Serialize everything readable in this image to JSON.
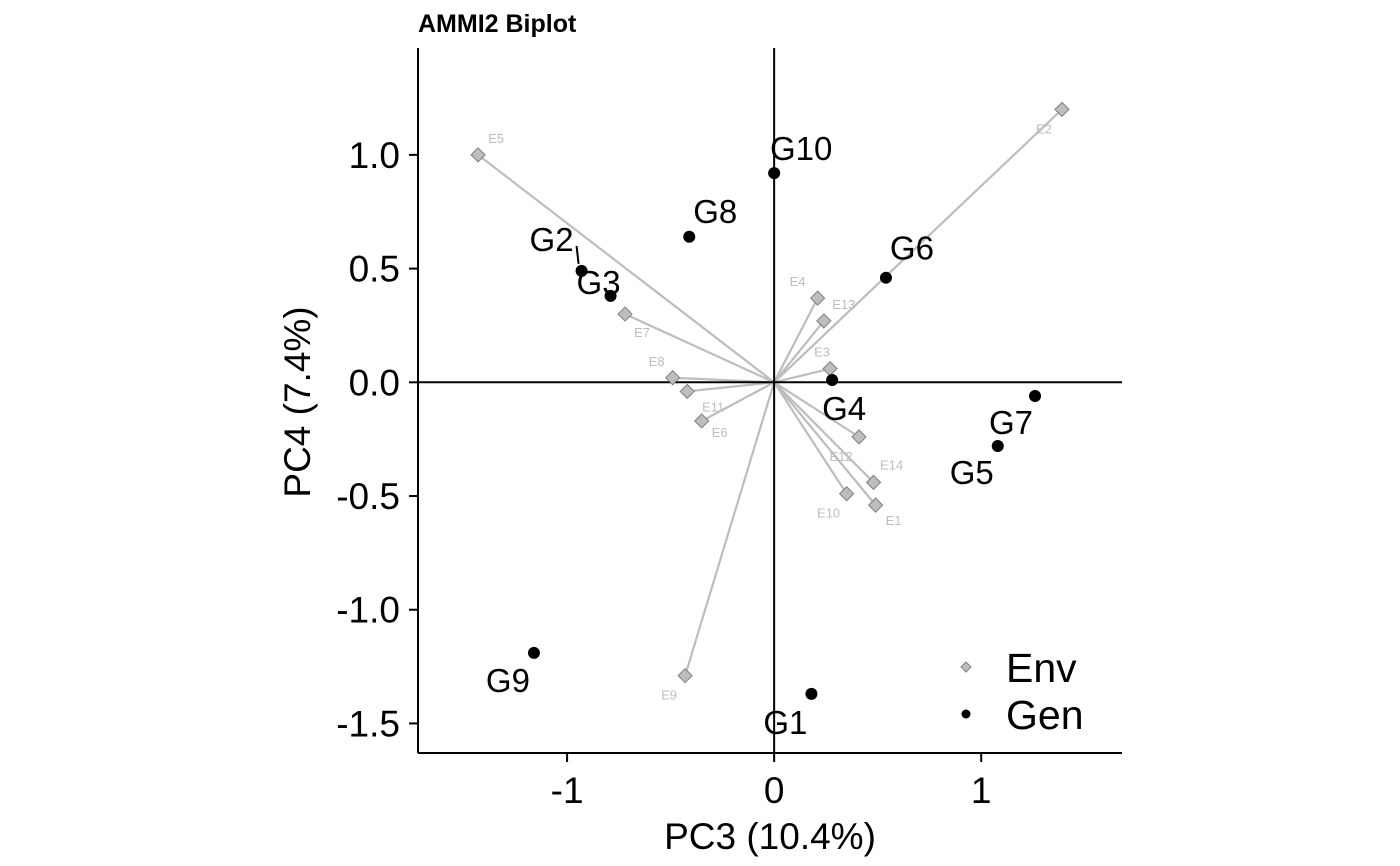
{
  "chart_data": {
    "type": "scatter",
    "title": "AMMI2 Biplot",
    "xlabel": "PC3 (10.4%)",
    "ylabel": "PC4 (7.4%)",
    "xlim": [
      -1.72,
      1.68
    ],
    "ylim": [
      -1.63,
      1.47
    ],
    "x_ticks": [
      -1,
      0,
      1
    ],
    "y_ticks": [
      -1.5,
      -1.0,
      -0.5,
      0.0,
      0.5,
      1.0
    ],
    "grid": false,
    "reference_lines": [
      "x=0",
      "y=0"
    ],
    "legend_position": "bottom-right",
    "colors": {
      "env": "#bdbdbd",
      "env_edge": "#7f7f7f",
      "gen": "#000000",
      "vector": "#bdbdbd"
    },
    "series": [
      {
        "name": "Env",
        "marker": "diamond",
        "points": [
          {
            "label": "E1",
            "x": 0.49,
            "y": -0.54
          },
          {
            "label": "E2",
            "x": 1.39,
            "y": 1.2
          },
          {
            "label": "E3",
            "x": 0.27,
            "y": 0.06
          },
          {
            "label": "E4",
            "x": 0.21,
            "y": 0.37
          },
          {
            "label": "E5",
            "x": -1.43,
            "y": 1.0
          },
          {
            "label": "E6",
            "x": -0.35,
            "y": -0.17
          },
          {
            "label": "E7",
            "x": -0.72,
            "y": 0.3
          },
          {
            "label": "E8",
            "x": -0.49,
            "y": 0.02
          },
          {
            "label": "E9",
            "x": -0.43,
            "y": -1.29
          },
          {
            "label": "E10",
            "x": 0.35,
            "y": -0.49
          },
          {
            "label": "E11",
            "x": -0.42,
            "y": -0.04
          },
          {
            "label": "E12",
            "x": 0.41,
            "y": -0.24
          },
          {
            "label": "E13",
            "x": 0.24,
            "y": 0.27
          },
          {
            "label": "E14",
            "x": 0.48,
            "y": -0.44
          }
        ]
      },
      {
        "name": "Gen",
        "marker": "circle",
        "points": [
          {
            "label": "G1",
            "x": 0.18,
            "y": -1.37
          },
          {
            "label": "G2",
            "x": -0.93,
            "y": 0.49
          },
          {
            "label": "G3",
            "x": -0.79,
            "y": 0.38
          },
          {
            "label": "G4",
            "x": 0.28,
            "y": 0.01
          },
          {
            "label": "G5",
            "x": 1.08,
            "y": -0.28
          },
          {
            "label": "G6",
            "x": 0.54,
            "y": 0.46
          },
          {
            "label": "G7",
            "x": 1.26,
            "y": -0.06
          },
          {
            "label": "G8",
            "x": -0.41,
            "y": 0.64
          },
          {
            "label": "G9",
            "x": -1.16,
            "y": -1.19
          },
          {
            "label": "G10",
            "x": 0.0,
            "y": 0.92
          }
        ]
      }
    ]
  }
}
